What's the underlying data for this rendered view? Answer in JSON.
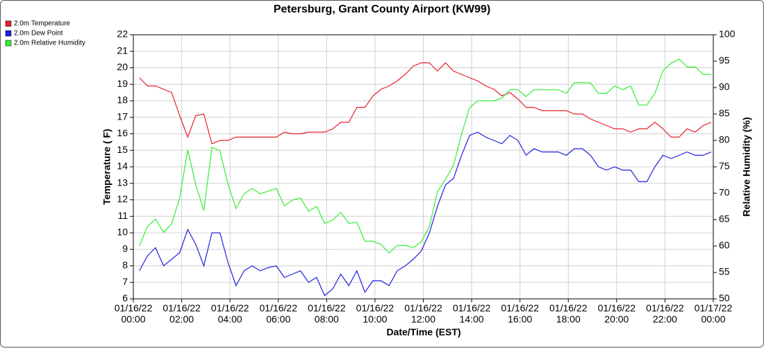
{
  "chart_data": {
    "type": "line",
    "title": "Petersburg, Grant County Airport (KW99)",
    "xlabel": "Date/Time (EST)",
    "ylabel": "Temperature ( F)",
    "y2label": "Relative Humidity (%)",
    "x": [
      15,
      35,
      55,
      75,
      95,
      115,
      135,
      155,
      175,
      195,
      215,
      235,
      255,
      275,
      295,
      315,
      335,
      355,
      375,
      395,
      415,
      435,
      455,
      475,
      495,
      515,
      535,
      555,
      575,
      595,
      615,
      635,
      655,
      675,
      695,
      715,
      735,
      755,
      775,
      795,
      815,
      835,
      855,
      875,
      895,
      915,
      935,
      955,
      975,
      995,
      1015,
      1035,
      1055,
      1075,
      1095,
      1115,
      1135,
      1155,
      1175,
      1195,
      1215,
      1235,
      1255,
      1275,
      1295,
      1315,
      1335,
      1355,
      1375,
      1395,
      1415,
      1435
    ],
    "series": [
      {
        "name": "2.0m Temperature",
        "color": "#e8202a",
        "values": [
          19.4,
          18.9,
          18.9,
          18.7,
          18.5,
          17.1,
          15.8,
          17.1,
          17.2,
          15.4,
          15.6,
          15.6,
          15.8,
          15.8,
          15.8,
          15.8,
          15.8,
          15.8,
          16.1,
          16.0,
          16.0,
          16.1,
          16.1,
          16.1,
          16.3,
          16.7,
          16.7,
          17.6,
          17.6,
          18.3,
          18.7,
          18.9,
          19.2,
          19.6,
          20.1,
          20.3,
          20.3,
          19.8,
          20.3,
          19.8,
          19.6,
          19.4,
          19.2,
          18.9,
          18.7,
          18.3,
          18.5,
          18.1,
          17.6,
          17.6,
          17.4,
          17.4,
          17.4,
          17.4,
          17.2,
          17.2,
          16.9,
          16.7,
          16.5,
          16.3,
          16.3,
          16.1,
          16.3,
          16.3,
          16.7,
          16.3,
          15.8,
          15.8,
          16.3,
          16.1,
          16.5,
          16.7
        ]
      },
      {
        "name": "2.0m Dew Point",
        "color": "#1f1fe0",
        "values": [
          7.7,
          8.6,
          9.1,
          8.0,
          8.4,
          8.8,
          10.2,
          9.3,
          8.0,
          10.0,
          10.0,
          8.2,
          6.8,
          7.7,
          8.0,
          7.7,
          7.9,
          8.0,
          7.3,
          7.5,
          7.7,
          7.0,
          7.3,
          6.2,
          6.6,
          7.5,
          6.8,
          7.7,
          6.4,
          7.1,
          7.1,
          6.8,
          7.7,
          8.0,
          8.4,
          8.9,
          10.0,
          11.6,
          12.9,
          13.3,
          14.7,
          15.9,
          16.1,
          15.8,
          15.6,
          15.4,
          15.9,
          15.6,
          14.7,
          15.1,
          14.9,
          14.9,
          14.9,
          14.7,
          15.1,
          15.1,
          14.7,
          14.0,
          13.8,
          14.0,
          13.8,
          13.8,
          13.1,
          13.1,
          14.0,
          14.7,
          14.5,
          14.7,
          14.9,
          14.7,
          14.7,
          14.9
        ]
      },
      {
        "name": "2.0m Relative Humidity",
        "color": "#33ee33",
        "axis": "y2",
        "values": [
          60,
          63.7,
          65.1,
          62.6,
          64.2,
          69.1,
          78.2,
          71.6,
          66.7,
          78.7,
          78,
          71.7,
          67.1,
          69.9,
          70.9,
          69.9,
          70.4,
          70.9,
          67.6,
          68.7,
          69.1,
          66.6,
          67.5,
          64.3,
          64.9,
          66.4,
          64.3,
          64.5,
          60.9,
          60.9,
          60.3,
          58.7,
          60.1,
          60.1,
          59.7,
          60.8,
          63.7,
          70.3,
          72.6,
          75.3,
          81.2,
          86.2,
          87.5,
          87.5,
          87.5,
          88,
          89.6,
          89.6,
          88.3,
          89.6,
          89.6,
          89.6,
          89.6,
          88.9,
          90.9,
          90.9,
          90.9,
          88.9,
          88.9,
          90.3,
          89.6,
          90.3,
          86.7,
          86.7,
          88.9,
          93.2,
          94.6,
          95.4,
          93.9,
          93.9,
          92.5,
          92.5
        ]
      }
    ],
    "xlim": [
      0,
      1440
    ],
    "xticks": [
      {
        "value": 0,
        "label": "01/16/22 00:00"
      },
      {
        "value": 120,
        "label": "01/16/22 02:00"
      },
      {
        "value": 240,
        "label": "01/16/22 04:00"
      },
      {
        "value": 360,
        "label": "01/16/22 06:00"
      },
      {
        "value": 480,
        "label": "01/16/22 08:00"
      },
      {
        "value": 600,
        "label": "01/16/22 10:00"
      },
      {
        "value": 720,
        "label": "01/16/22 12:00"
      },
      {
        "value": 840,
        "label": "01/16/22 14:00"
      },
      {
        "value": 960,
        "label": "01/16/22 16:00"
      },
      {
        "value": 1080,
        "label": "01/16/22 18:00"
      },
      {
        "value": 1200,
        "label": "01/16/22 20:00"
      },
      {
        "value": 1320,
        "label": "01/16/22 22:00"
      },
      {
        "value": 1440,
        "label": "01/17/22 00:00"
      }
    ],
    "ylim": [
      6,
      22
    ],
    "yticks": [
      6,
      7,
      8,
      9,
      10,
      11,
      12,
      13,
      14,
      15,
      16,
      17,
      18,
      19,
      20,
      21,
      22
    ],
    "y2lim": [
      50,
      100
    ],
    "y2ticks": [
      50,
      55,
      60,
      65,
      70,
      75,
      80,
      85,
      90,
      95,
      100
    ],
    "grid": true,
    "legend": "top-left"
  }
}
